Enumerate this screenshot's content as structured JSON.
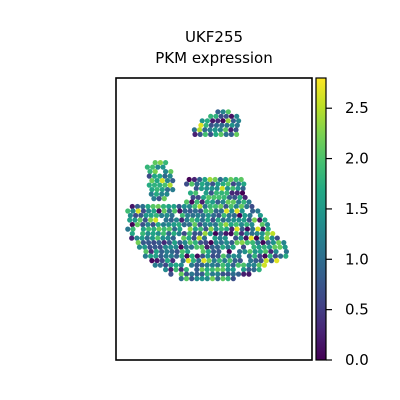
{
  "chart_data": {
    "type": "scatter",
    "title_line1": "UKF255",
    "title_line2": "PKM expression",
    "xlabel": "",
    "ylabel": "",
    "colorbar": {
      "colormap": "viridis",
      "range": [
        0.0,
        2.8
      ],
      "ticks": [
        0.0,
        0.5,
        1.0,
        1.5,
        2.0,
        2.5
      ],
      "tick_labels": [
        "0.0",
        "0.5",
        "1.0",
        "1.5",
        "2.0",
        "2.5"
      ]
    },
    "grid": false,
    "x_ticks": "none",
    "y_ticks": "none",
    "spots": {
      "layout": "hexagonal",
      "description_free": true,
      "regions": [
        {
          "kind": "left-island",
          "rows": [
            [
              0.16,
              0.27
            ],
            [
              0.16,
              0.29
            ],
            [
              0.16,
              0.3
            ],
            [
              0.17,
              0.3
            ],
            [
              0.17,
              0.3
            ],
            [
              0.17,
              0.3
            ],
            [
              0.17,
              0.29
            ],
            [
              0.18,
              0.28
            ],
            [
              0.18,
              0.27
            ]
          ],
          "row_start": 0.3
        },
        {
          "kind": "top-strip",
          "rows": [
            [
              0.52,
              0.59
            ],
            [
              0.47,
              0.62
            ],
            [
              0.44,
              0.64
            ],
            [
              0.42,
              0.64
            ],
            [
              0.4,
              0.63
            ],
            [
              0.39,
              0.62
            ]
          ],
          "row_start": 0.12
        },
        {
          "kind": "main-body",
          "rows": [
            [
              0.36,
              0.64
            ],
            [
              0.36,
              0.66
            ],
            [
              0.37,
              0.66
            ],
            [
              0.38,
              0.67
            ],
            [
              0.38,
              0.68
            ],
            [
              0.36,
              0.7
            ],
            [
              0.07,
              0.72
            ],
            [
              0.06,
              0.74
            ],
            [
              0.06,
              0.76
            ],
            [
              0.07,
              0.77
            ],
            [
              0.07,
              0.78
            ],
            [
              0.06,
              0.8
            ],
            [
              0.07,
              0.82
            ],
            [
              0.08,
              0.84
            ],
            [
              0.1,
              0.86
            ],
            [
              0.12,
              0.88
            ],
            [
              0.14,
              0.88
            ],
            [
              0.15,
              0.87
            ],
            [
              0.17,
              0.84
            ],
            [
              0.2,
              0.78
            ],
            [
              0.24,
              0.74
            ],
            [
              0.28,
              0.7
            ],
            [
              0.32,
              0.64
            ]
          ],
          "row_start": 0.36
        }
      ]
    }
  }
}
